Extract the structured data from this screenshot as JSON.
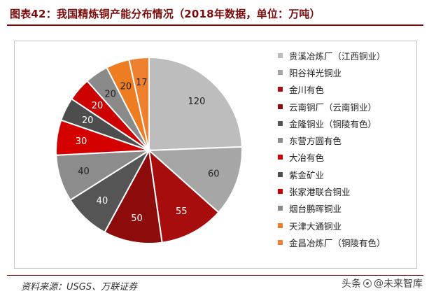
{
  "header": {
    "title": "图表42：我国精炼铜产能分布情况（2018年数据，单位：万吨）"
  },
  "footer": {
    "source": "资料来源：USGS、万联证券",
    "watermark_prefix": "头条",
    "watermark_at": "@",
    "watermark_name": "未来智库"
  },
  "chart_data": {
    "type": "pie",
    "title": "",
    "start_angle_deg": 0,
    "direction": "clockwise",
    "legend_position": "right",
    "slices": [
      {
        "label": "贵溪冶炼厂（江西铜业）",
        "value": 120,
        "color": "#bdbdbd",
        "label_color": "#222222"
      },
      {
        "label": "阳谷祥光铜业",
        "value": 60,
        "color": "#a6a6a6",
        "label_color": "#222222"
      },
      {
        "label": "金川有色",
        "value": 55,
        "color": "#a80d0d",
        "label_color": "#ffffff"
      },
      {
        "label": "云南铜厂（云南铜业）",
        "value": 50,
        "color": "#8e0b0b",
        "label_color": "#ffffff"
      },
      {
        "label": "金隆铜业（铜陵有色）",
        "value": 40,
        "color": "#555555",
        "label_color": "#ffffff"
      },
      {
        "label": "东营方圆有色",
        "value": 40,
        "color": "#8c8c8c",
        "label_color": "#222222"
      },
      {
        "label": "大冶有色",
        "value": 30,
        "color": "#d40000",
        "label_color": "#ffffff"
      },
      {
        "label": "紫金矿业",
        "value": 20,
        "color": "#4d4d4d",
        "label_color": "#ffffff"
      },
      {
        "label": "张家港联合铜业",
        "value": 20,
        "color": "#cc0000",
        "label_color": "#ffffff"
      },
      {
        "label": "烟台鹏晖铜业",
        "value": 20,
        "color": "#8a8a8a",
        "label_color": "#222222"
      },
      {
        "label": "天津大通铜业",
        "value": 20,
        "color": "#ee7d22",
        "label_color": "#222222"
      },
      {
        "label": "金昌冶炼厂（铜陵有色）",
        "value": 17,
        "color": "#ee8030",
        "label_color": "#222222"
      }
    ]
  }
}
